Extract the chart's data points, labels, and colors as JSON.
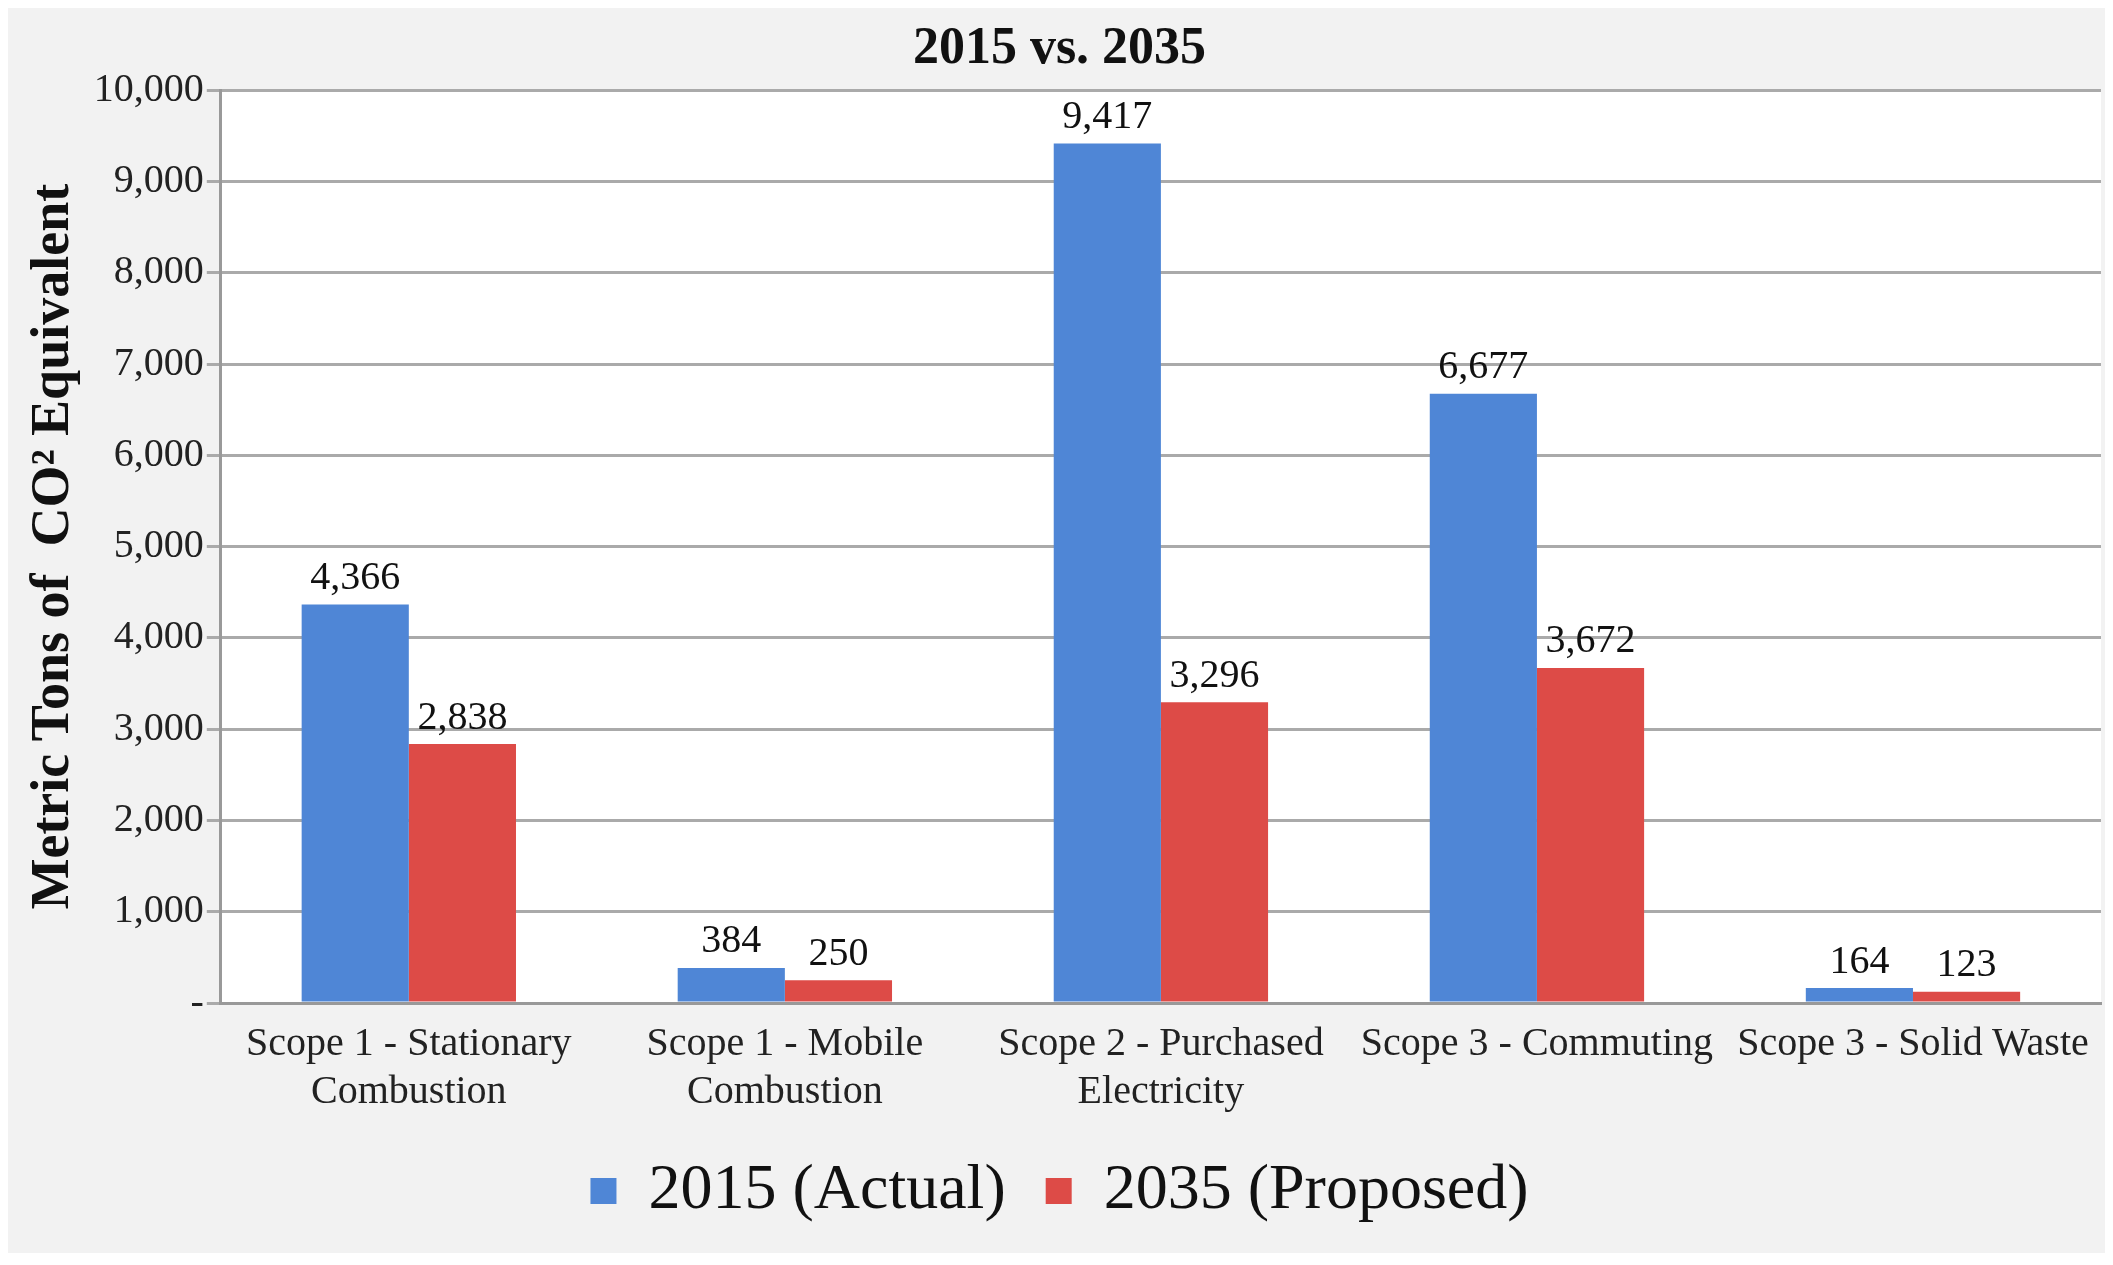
{
  "chart_data": {
    "type": "bar",
    "title": "2015 vs. 2035",
    "ylabel": "Metric Tons of  CO² Equivalent",
    "categories": [
      "Scope 1 - Stationary Combustion",
      "Scope 1 - Mobile Combustion",
      "Scope 2 - Purchased Electricity",
      "Scope 3 - Commuting",
      "Scope 3 - Solid Waste"
    ],
    "series": [
      {
        "name": "2015 (Actual)",
        "color": "#4f86d6",
        "values": [
          4366,
          384,
          9417,
          6677,
          164
        ],
        "value_labels": [
          "4,366",
          "384",
          "9,417",
          "6,677",
          "164"
        ]
      },
      {
        "name": "2035 (Proposed)",
        "color": "#dd4b47",
        "values": [
          2838,
          250,
          3296,
          3672,
          123
        ],
        "value_labels": [
          "2,838",
          "250",
          "3,296",
          "3,672",
          "123"
        ]
      }
    ],
    "ylim": [
      0,
      10000
    ],
    "yticks": [
      {
        "value": 0,
        "label": "-"
      },
      {
        "value": 1000,
        "label": "1,000"
      },
      {
        "value": 2000,
        "label": "2,000"
      },
      {
        "value": 3000,
        "label": "3,000"
      },
      {
        "value": 4000,
        "label": "4,000"
      },
      {
        "value": 5000,
        "label": "5,000"
      },
      {
        "value": 6000,
        "label": "6,000"
      },
      {
        "value": 7000,
        "label": "7,000"
      },
      {
        "value": 8000,
        "label": "8,000"
      },
      {
        "value": 9000,
        "label": "9,000"
      },
      {
        "value": 10000,
        "label": "10,000"
      }
    ],
    "grid": "y",
    "legend": "bottom"
  }
}
